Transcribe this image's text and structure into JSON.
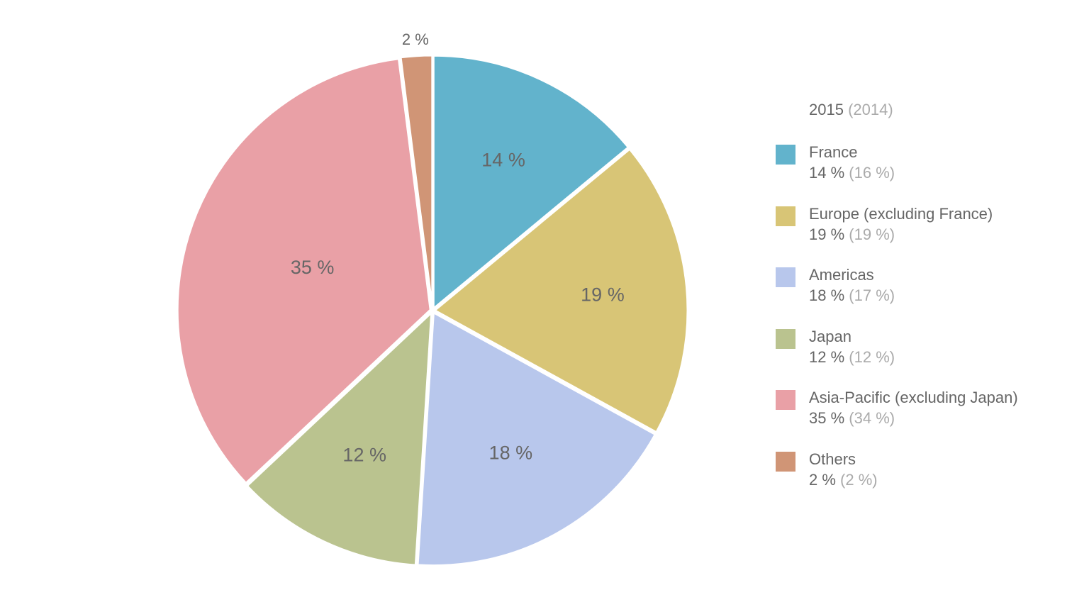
{
  "chart_data": {
    "type": "pie",
    "title": "2015",
    "title_compare": "(2014)",
    "categories": [
      "France",
      "Europe (excluding France)",
      "Americas",
      "Japan",
      "Asia-Pacific (excluding Japan)",
      "Others"
    ],
    "values": [
      14,
      19,
      18,
      12,
      35,
      2
    ],
    "values_2014": [
      16,
      19,
      17,
      12,
      34,
      2
    ],
    "labels": [
      "14 %",
      "19 %",
      "18 %",
      "12 %",
      "35 %",
      "2 %"
    ],
    "labels_2014": [
      "(16 %)",
      "(19 %)",
      "(17 %)",
      "(12 %)",
      "(34 %)",
      "(2 %)"
    ],
    "colors": [
      "#62b3cc",
      "#d8c576",
      "#b8c7ec",
      "#bac38f",
      "#e9a0a6",
      "#d09576"
    ],
    "legend_position": "right",
    "start": "top",
    "direction": "clockwise"
  }
}
